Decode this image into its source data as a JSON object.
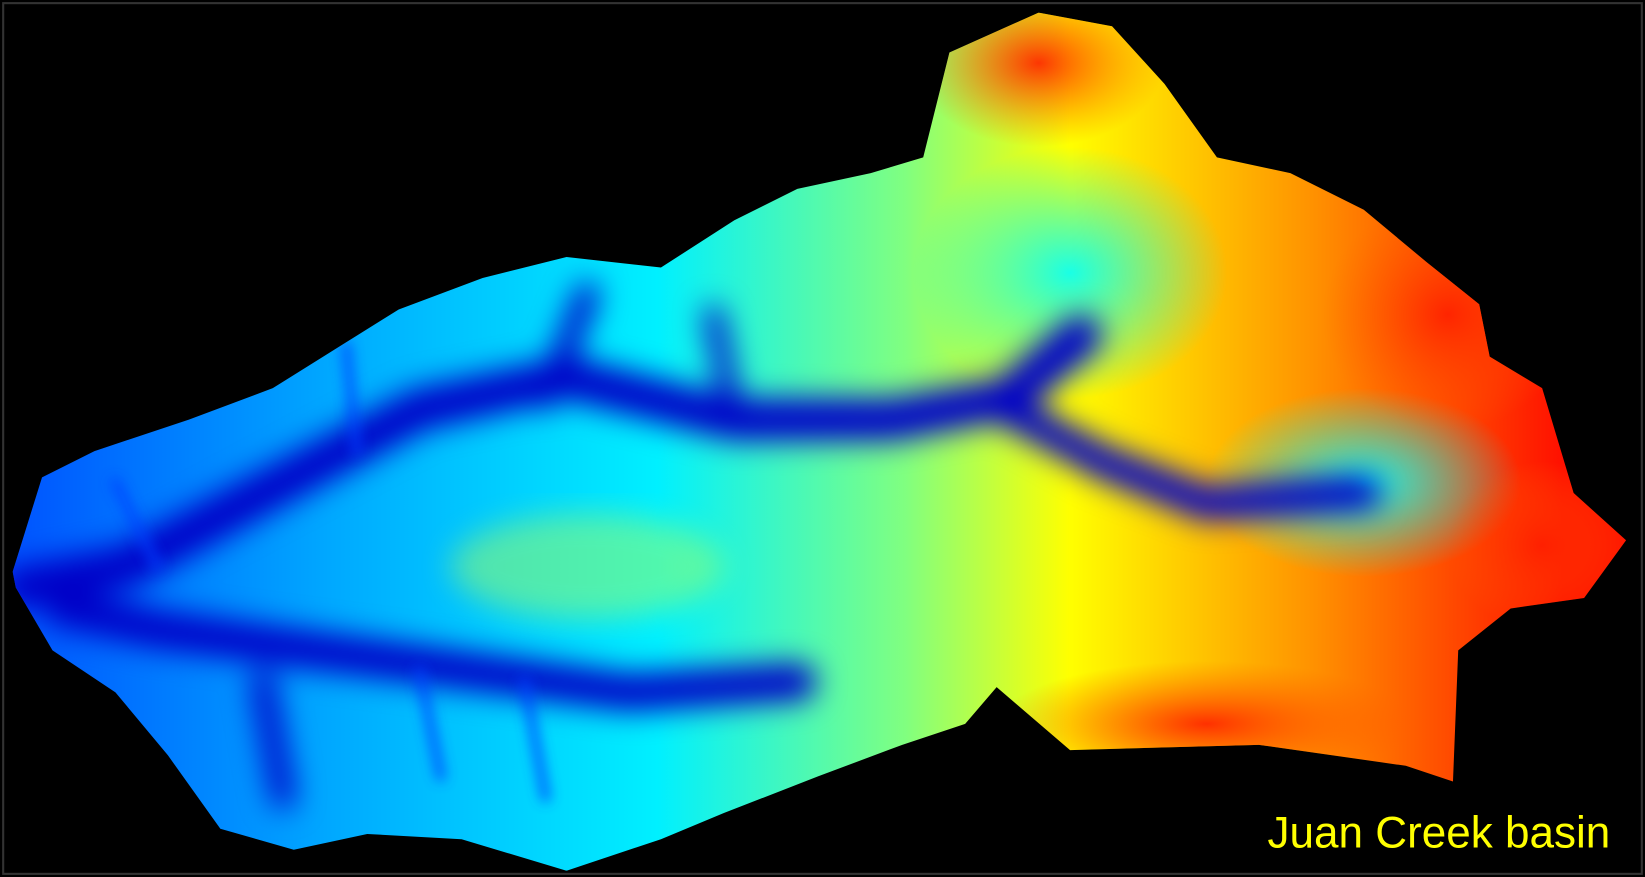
{
  "map": {
    "label": "Juan Creek basin"
  }
}
